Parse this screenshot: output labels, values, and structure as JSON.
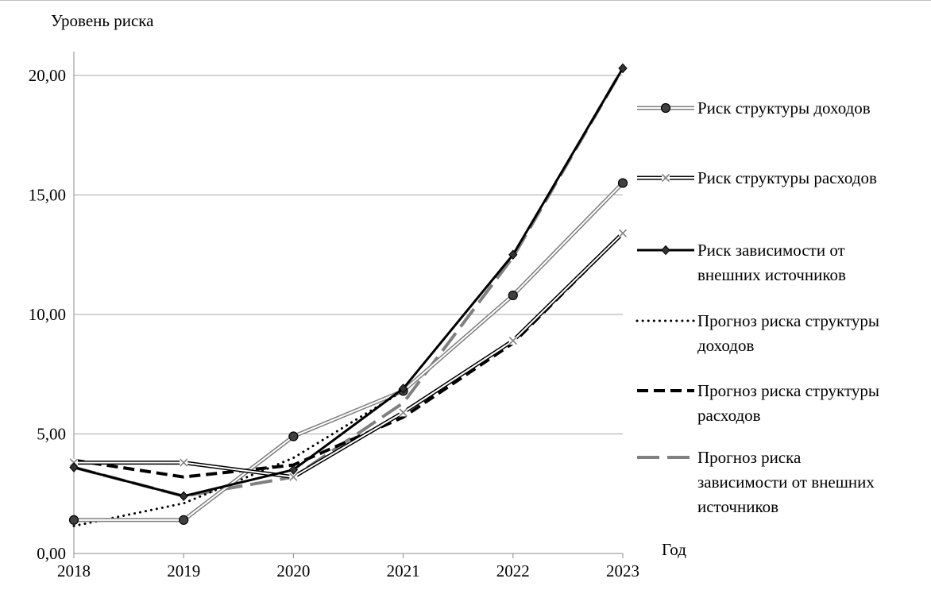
{
  "chart_data": {
    "type": "line",
    "title": "",
    "ylabel": "Уровень риска",
    "xlabel": "Год",
    "x": [
      "2018",
      "2019",
      "2020",
      "2021",
      "2022",
      "2023"
    ],
    "ylim": [
      0,
      20
    ],
    "yticks": [
      "0,00",
      "5,00",
      "10,00",
      "15,00",
      "20,00"
    ],
    "ytick_values": [
      0,
      5,
      10,
      15,
      20
    ],
    "grid": true,
    "legend_position": "right",
    "series": [
      {
        "name": "Риск структуры доходов",
        "values": [
          1.4,
          1.4,
          4.9,
          6.8,
          10.8,
          15.5
        ],
        "style": "double-light",
        "marker": "circle",
        "color": "#7f7f7f",
        "legend_lines": [
          "Риск структуры доходов"
        ]
      },
      {
        "name": "Риск структуры расходов",
        "values": [
          3.8,
          3.8,
          3.2,
          5.9,
          8.9,
          13.4
        ],
        "style": "double-dark",
        "marker": "x",
        "color": "#000000",
        "legend_lines": [
          "Риск структуры расходов"
        ]
      },
      {
        "name": "Риск зависимости от внешних источников",
        "values": [
          3.6,
          2.4,
          3.5,
          6.9,
          12.5,
          20.3
        ],
        "style": "solid",
        "marker": "diamond",
        "color": "#000000",
        "legend_lines": [
          "Риск зависимости от",
          "внешних источников"
        ]
      },
      {
        "name": "Прогноз риска структуры доходов",
        "values": [
          1.15,
          2.1,
          4.0,
          6.8,
          10.8,
          15.5
        ],
        "style": "dotted",
        "marker": "none",
        "color": "#000000",
        "legend_lines": [
          "Прогноз риска структуры",
          "доходов"
        ]
      },
      {
        "name": "Прогноз риска структуры расходов",
        "values": [
          3.9,
          3.2,
          3.7,
          5.7,
          8.8,
          13.4
        ],
        "style": "dashed",
        "marker": "none",
        "color": "#000000",
        "legend_lines": [
          "Прогноз риска структуры",
          "расходов"
        ]
      },
      {
        "name": "Прогноз риска зависимости от внешних источников",
        "values": [
          3.6,
          2.4,
          3.2,
          6.3,
          12.4,
          20.3
        ],
        "style": "long-dash",
        "marker": "none",
        "color": "#808080",
        "legend_lines": [
          "Прогноз риска",
          "зависимости от внешних",
          "источников"
        ]
      }
    ]
  }
}
